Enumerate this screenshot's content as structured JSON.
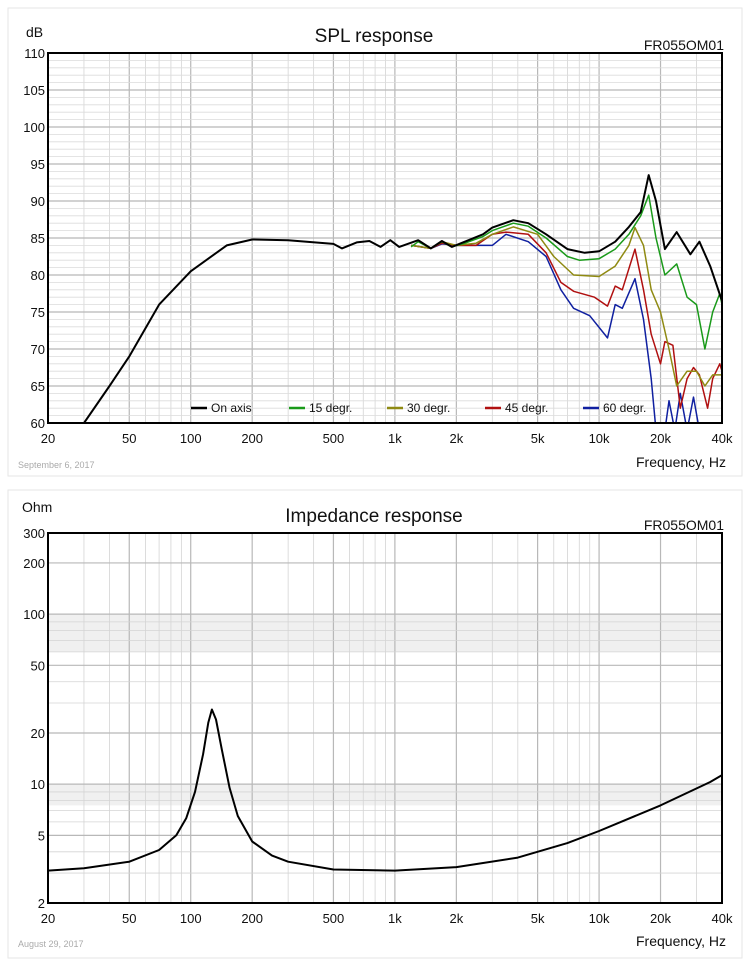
{
  "chart_data": [
    {
      "type": "line",
      "title": "SPL response",
      "ylabel": "dB",
      "xlabel": "Frequency, Hz",
      "model": "FR055OM01",
      "date": "September 6, 2017",
      "xscale": "log",
      "xlim": [
        20,
        40000
      ],
      "ylim": [
        60,
        110
      ],
      "grid": true,
      "legend_position": "bottom",
      "xticks": [
        20,
        50,
        100,
        200,
        500,
        1000,
        2000,
        5000,
        10000,
        20000,
        40000
      ],
      "xtick_labels": [
        "20",
        "50",
        "100",
        "200",
        "500",
        "1k",
        "2k",
        "5k",
        "10k",
        "20k",
        "40k"
      ],
      "yticks": [
        60,
        65,
        70,
        75,
        80,
        85,
        90,
        95,
        100,
        105,
        110
      ],
      "ytick_labels": [
        "60",
        "65",
        "70",
        "75",
        "80",
        "85",
        "90",
        "95",
        "100",
        "105",
        "110"
      ],
      "series": [
        {
          "name": "On axis",
          "color": "#000000",
          "points": [
            [
              30,
              60
            ],
            [
              40,
              65
            ],
            [
              50,
              69
            ],
            [
              70,
              76
            ],
            [
              100,
              80.5
            ],
            [
              150,
              84
            ],
            [
              200,
              84.8
            ],
            [
              300,
              84.7
            ],
            [
              500,
              84.2
            ],
            [
              550,
              83.6
            ],
            [
              650,
              84.4
            ],
            [
              750,
              84.6
            ],
            [
              850,
              83.8
            ],
            [
              950,
              84.7
            ],
            [
              1050,
              83.8
            ],
            [
              1300,
              84.7
            ],
            [
              1500,
              83.6
            ],
            [
              1700,
              84.6
            ],
            [
              1900,
              83.8
            ],
            [
              2200,
              84.5
            ],
            [
              2700,
              85.5
            ],
            [
              3000,
              86.4
            ],
            [
              3800,
              87.4
            ],
            [
              4500,
              87
            ],
            [
              5500,
              85.5
            ],
            [
              7000,
              83.5
            ],
            [
              8500,
              83
            ],
            [
              10000,
              83.2
            ],
            [
              12000,
              84.5
            ],
            [
              14000,
              86.5
            ],
            [
              16000,
              88.5
            ],
            [
              17500,
              93.5
            ],
            [
              19000,
              90
            ],
            [
              21000,
              83.5
            ],
            [
              24000,
              85.8
            ],
            [
              28000,
              82.8
            ],
            [
              31000,
              84.5
            ],
            [
              35000,
              81.2
            ],
            [
              40000,
              76.5
            ]
          ]
        },
        {
          "name": "15 degr.",
          "color": "#1a9a1a",
          "points": [
            [
              1200,
              83.8
            ],
            [
              1300,
              84.5
            ],
            [
              1500,
              83.6
            ],
            [
              1700,
              84.5
            ],
            [
              1900,
              83.8
            ],
            [
              2200,
              84.3
            ],
            [
              2700,
              85.2
            ],
            [
              3000,
              86
            ],
            [
              3800,
              87
            ],
            [
              4500,
              86.6
            ],
            [
              5500,
              85
            ],
            [
              7000,
              82.5
            ],
            [
              8000,
              82
            ],
            [
              10000,
              82.2
            ],
            [
              12000,
              83.5
            ],
            [
              14000,
              85.5
            ],
            [
              16000,
              88
            ],
            [
              17500,
              90.8
            ],
            [
              19000,
              85
            ],
            [
              21000,
              80
            ],
            [
              24000,
              81.5
            ],
            [
              27000,
              77
            ],
            [
              30000,
              76
            ],
            [
              33000,
              70
            ],
            [
              36000,
              75
            ],
            [
              39000,
              77.5
            ],
            [
              40000,
              76
            ]
          ]
        },
        {
          "name": "30 degr.",
          "color": "#8f8a12",
          "points": [
            [
              1200,
              84
            ],
            [
              1500,
              83.6
            ],
            [
              1700,
              84.5
            ],
            [
              2000,
              84
            ],
            [
              2500,
              84.3
            ],
            [
              3000,
              85.5
            ],
            [
              3800,
              86.5
            ],
            [
              5000,
              85.5
            ],
            [
              6000,
              82.5
            ],
            [
              7500,
              80
            ],
            [
              10000,
              79.8
            ],
            [
              12000,
              81.2
            ],
            [
              14000,
              84
            ],
            [
              15000,
              86.4
            ],
            [
              16500,
              84
            ],
            [
              18000,
              78
            ],
            [
              20000,
              75
            ],
            [
              22000,
              70
            ],
            [
              24000,
              65
            ],
            [
              27000,
              67
            ],
            [
              30000,
              67
            ],
            [
              33000,
              65
            ],
            [
              36000,
              66.5
            ],
            [
              40000,
              66.5
            ]
          ]
        },
        {
          "name": "45 degr.",
          "color": "#b01010",
          "points": [
            [
              1200,
              84
            ],
            [
              1500,
              83.6
            ],
            [
              1700,
              84.3
            ],
            [
              2000,
              84
            ],
            [
              2500,
              84
            ],
            [
              3000,
              85.5
            ],
            [
              3500,
              85.8
            ],
            [
              4500,
              85.5
            ],
            [
              5500,
              83
            ],
            [
              6500,
              79
            ],
            [
              7500,
              77.8
            ],
            [
              9500,
              77
            ],
            [
              11000,
              75.8
            ],
            [
              12000,
              78.5
            ],
            [
              13000,
              78
            ],
            [
              15000,
              83.5
            ],
            [
              16500,
              78
            ],
            [
              18000,
              72
            ],
            [
              20000,
              68
            ],
            [
              21000,
              71
            ],
            [
              23000,
              70.5
            ],
            [
              25000,
              62
            ],
            [
              27000,
              66
            ],
            [
              29000,
              67.5
            ],
            [
              31000,
              66.5
            ],
            [
              34000,
              62
            ],
            [
              36000,
              66
            ],
            [
              39000,
              68
            ],
            [
              40000,
              67
            ]
          ]
        },
        {
          "name": "60 degr.",
          "color": "#1020a0",
          "points": [
            [
              1200,
              84
            ],
            [
              1500,
              83.6
            ],
            [
              1700,
              84.2
            ],
            [
              2000,
              84
            ],
            [
              2500,
              84
            ],
            [
              3000,
              84
            ],
            [
              3500,
              85.5
            ],
            [
              4500,
              84.5
            ],
            [
              5500,
              82.5
            ],
            [
              6500,
              78
            ],
            [
              7500,
              75.5
            ],
            [
              9000,
              74.5
            ],
            [
              11000,
              71.5
            ],
            [
              12000,
              76
            ],
            [
              13000,
              75.5
            ],
            [
              15000,
              79.5
            ],
            [
              16500,
              74
            ],
            [
              18000,
              66
            ],
            [
              19000,
              59
            ],
            [
              21000,
              59
            ],
            [
              22000,
              63
            ],
            [
              23500,
              59
            ],
            [
              25000,
              64
            ],
            [
              27000,
              59
            ],
            [
              29000,
              63.5
            ],
            [
              31000,
              59
            ]
          ]
        }
      ]
    },
    {
      "type": "line",
      "title": "Impedance response",
      "ylabel": "Ohm",
      "xlabel": "Frequency, Hz",
      "model": "FR055OM01",
      "date": "August 29, 2017",
      "xscale": "log",
      "yscale": "log",
      "xlim": [
        20,
        40000
      ],
      "ylim": [
        2,
        300
      ],
      "grid": true,
      "xticks": [
        20,
        50,
        100,
        200,
        500,
        1000,
        2000,
        5000,
        10000,
        20000,
        40000
      ],
      "xtick_labels": [
        "20",
        "50",
        "100",
        "200",
        "500",
        "1k",
        "2k",
        "5k",
        "10k",
        "20k",
        "40k"
      ],
      "yticks": [
        2,
        5,
        10,
        20,
        50,
        100,
        200,
        300
      ],
      "ytick_labels": [
        "2",
        "5",
        "10",
        "20",
        "50",
        "100",
        "200",
        "300"
      ],
      "series": [
        {
          "name": "Impedance",
          "color": "#000000",
          "points": [
            [
              20,
              3.1
            ],
            [
              30,
              3.2
            ],
            [
              50,
              3.5
            ],
            [
              70,
              4.1
            ],
            [
              85,
              5
            ],
            [
              95,
              6.3
            ],
            [
              105,
              9
            ],
            [
              115,
              15
            ],
            [
              122,
              23
            ],
            [
              127,
              27.5
            ],
            [
              133,
              24
            ],
            [
              142,
              16
            ],
            [
              155,
              9.5
            ],
            [
              170,
              6.5
            ],
            [
              200,
              4.6
            ],
            [
              250,
              3.8
            ],
            [
              300,
              3.5
            ],
            [
              500,
              3.15
            ],
            [
              1000,
              3.1
            ],
            [
              2000,
              3.25
            ],
            [
              4000,
              3.7
            ],
            [
              7000,
              4.5
            ],
            [
              10000,
              5.3
            ],
            [
              20000,
              7.5
            ],
            [
              35000,
              10.3
            ],
            [
              40000,
              11.3
            ]
          ]
        }
      ]
    }
  ]
}
